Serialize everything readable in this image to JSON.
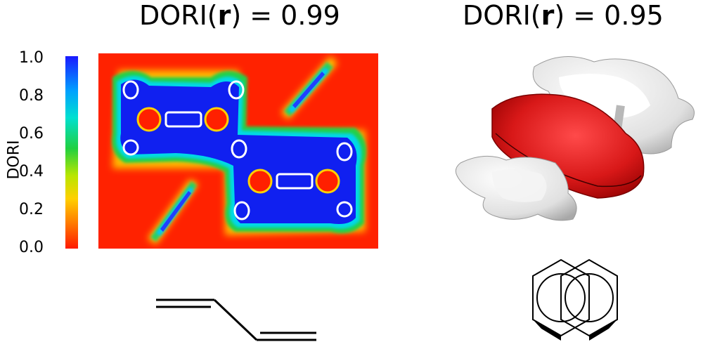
{
  "left_panel": {
    "title_prefix": "DORI(",
    "title_bold": "r",
    "title_suffix": ") = 0.99",
    "colorbar": {
      "label": "DORI",
      "ticks": [
        "1.0",
        "0.8",
        "0.6",
        "0.4",
        "0.2",
        "0.0"
      ],
      "colors": [
        "#1a1aff",
        "#00b4ff",
        "#00e0c0",
        "#2ad44a",
        "#c8e600",
        "#ffd000",
        "#ff8000",
        "#ff1a00"
      ]
    },
    "structure": "butadiene-skeletal-formula"
  },
  "right_panel": {
    "title_prefix": "DORI(",
    "title_bold": "r",
    "title_suffix": ") = 0.95",
    "structure": "stacked-benzene-dimer"
  }
}
